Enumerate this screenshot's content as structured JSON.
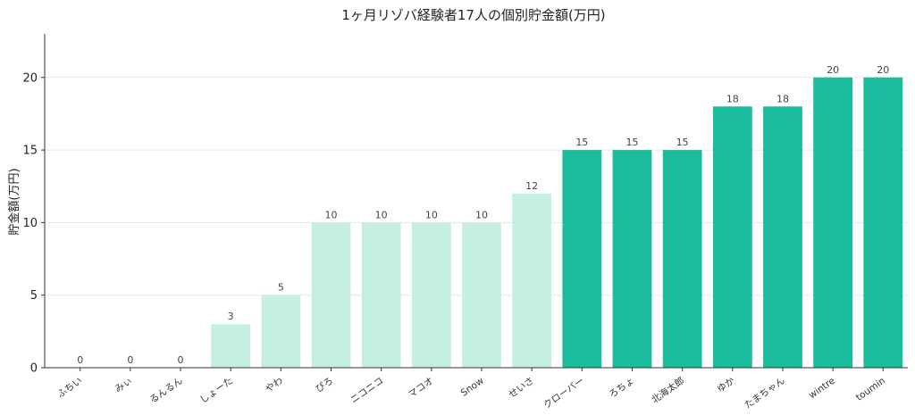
{
  "chart_data": {
    "type": "bar",
    "title": "1ヶ月リゾバ経験者17人の個別貯金額(万円)",
    "xlabel": "",
    "ylabel": "貯金額(万円)",
    "ylim": [
      0,
      23
    ],
    "yticks": [
      0,
      5,
      10,
      15,
      20
    ],
    "grid": true,
    "categories": [
      "ふちい",
      "みぃ",
      "るんるん",
      "しょーた",
      "やわ",
      "ぴろ",
      "ニコニコ",
      "マコオ",
      "Snow",
      "せいさ",
      "クローバー",
      "ろちょ",
      "北海太郎",
      "ゆか",
      "たまちゃん",
      "wintre",
      "toumin"
    ],
    "values": [
      0,
      0,
      0,
      3,
      5,
      10,
      10,
      10,
      10,
      12,
      15,
      15,
      15,
      18,
      18,
      20,
      20
    ],
    "colors": {
      "low": "#c6efe4",
      "high": "#1abc9c",
      "threshold": 15
    }
  }
}
